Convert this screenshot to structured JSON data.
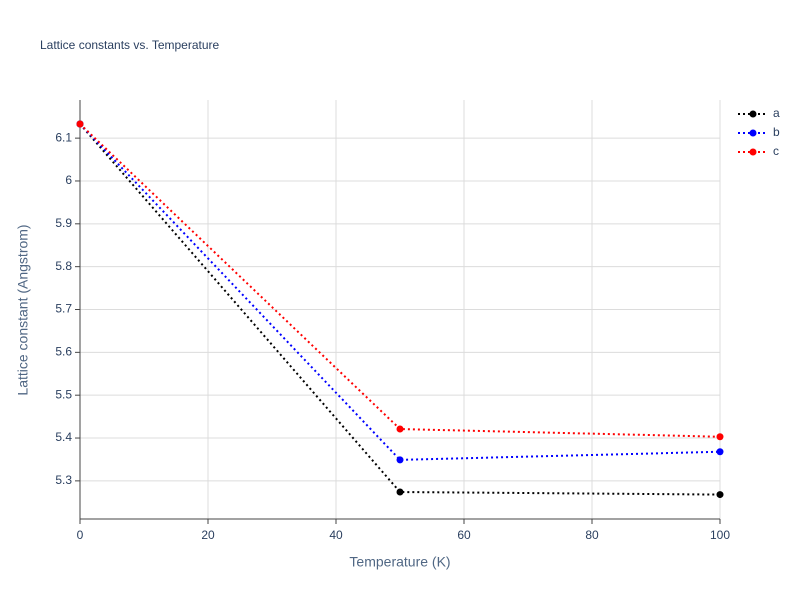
{
  "chart_data": {
    "type": "line",
    "title": "Lattice constants vs. Temperature",
    "x_label": "Temperature (K)",
    "y_label": "Lattice constant (Angstrom)",
    "x": [
      0,
      50,
      100
    ],
    "series": [
      {
        "name": "a",
        "color": "#000000",
        "values": [
          6.133,
          5.274,
          5.268
        ]
      },
      {
        "name": "b",
        "color": "#0000ff",
        "values": [
          6.133,
          5.349,
          5.368
        ]
      },
      {
        "name": "c",
        "color": "#ff0000",
        "values": [
          6.133,
          5.421,
          5.403
        ]
      }
    ],
    "xlim": [
      0,
      100
    ],
    "xticks": [
      0,
      20,
      40,
      60,
      80,
      100
    ],
    "ylim": [
      5.211,
      6.189
    ],
    "yticks": [
      5.3,
      5.4,
      5.5,
      5.6,
      5.7,
      5.8,
      5.9,
      6,
      6.1
    ],
    "grid": true,
    "legend": "top-right"
  }
}
